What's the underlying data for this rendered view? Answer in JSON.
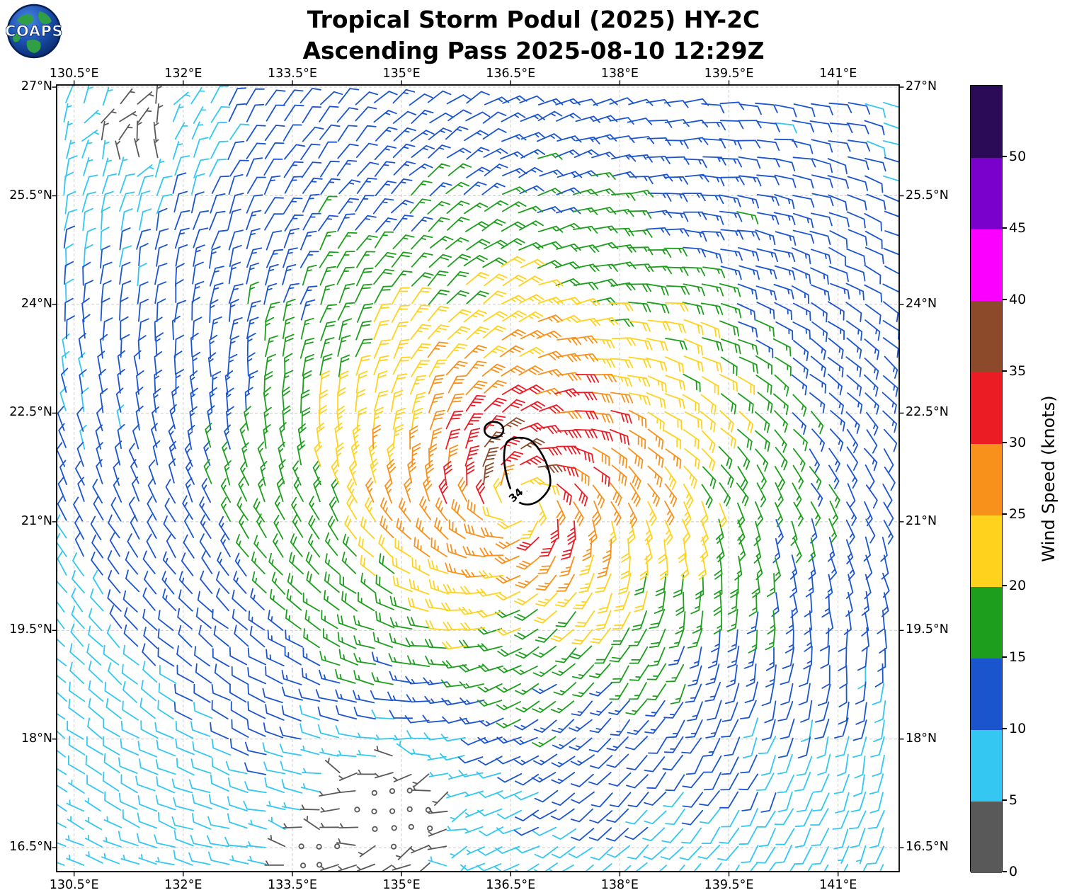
{
  "logo": {
    "text": "COAPS"
  },
  "header": {
    "title_line1": "Tropical Storm Podul (2025) HY-2C",
    "title_line2": "Ascending Pass 2025-08-10 12:29Z"
  },
  "chart_data": {
    "type": "wind_barb_map",
    "title": "Tropical Storm Podul (2025) HY-2C",
    "subtitle": "Ascending Pass 2025-08-10 12:29Z",
    "storm_name": "Tropical Storm Podul",
    "storm_year": "2025",
    "satellite": "HY-2C",
    "pass": "Ascending",
    "valid_time": "2025-08-10 12:29Z",
    "grid_on": true,
    "x_axis": {
      "range": [
        130.26,
        141.84
      ],
      "ticks": [
        130.5,
        132,
        133.5,
        135,
        136.5,
        138,
        139.5,
        141
      ],
      "tick_labels": [
        "130.5°E",
        "132°E",
        "133.5°E",
        "135°E",
        "136.5°E",
        "138°E",
        "139.5°E",
        "141°E"
      ]
    },
    "y_axis": {
      "range": [
        16.17,
        27.03
      ],
      "ticks": [
        27,
        25.5,
        24,
        22.5,
        21,
        19.5,
        18,
        16.5
      ],
      "tick_labels": [
        "27°N",
        "25.5°N",
        "24°N",
        "22.5°N",
        "21°N",
        "19.5°N",
        "18°N",
        "16.5°N"
      ]
    },
    "colorbar": {
      "label": "Wind Speed (knots)",
      "range": [
        0,
        55
      ],
      "ticks": [
        0,
        5,
        10,
        15,
        20,
        25,
        30,
        35,
        40,
        45,
        50
      ],
      "bins": [
        {
          "range": [
            0,
            5
          ],
          "color": "#595959"
        },
        {
          "range": [
            5,
            10
          ],
          "color": "#33C7F2"
        },
        {
          "range": [
            10,
            15
          ],
          "color": "#1B55CE"
        },
        {
          "range": [
            15,
            20
          ],
          "color": "#1D9E1D"
        },
        {
          "range": [
            20,
            25
          ],
          "color": "#FFD21E"
        },
        {
          "range": [
            25,
            30
          ],
          "color": "#F8911C"
        },
        {
          "range": [
            30,
            35
          ],
          "color": "#EC1C24"
        },
        {
          "range": [
            35,
            40
          ],
          "color": "#8C4A2B"
        },
        {
          "range": [
            40,
            45
          ],
          "color": "#FB00FF"
        },
        {
          "range": [
            45,
            50
          ],
          "color": "#7A00CC"
        },
        {
          "range": [
            50,
            55
          ],
          "color": "#2B0A57"
        }
      ]
    },
    "contour": {
      "value_knots": 34,
      "label": "34",
      "label_pos": {
        "lon": 136.57,
        "lat": 21.37,
        "rotation_deg": -42
      },
      "main_polygon": [
        [
          136.45,
          22.1
        ],
        [
          136.6,
          22.16
        ],
        [
          136.78,
          22.12
        ],
        [
          136.92,
          21.95
        ],
        [
          137.02,
          21.72
        ],
        [
          137.04,
          21.5
        ],
        [
          136.92,
          21.32
        ],
        [
          136.76,
          21.24
        ],
        [
          136.6,
          21.28
        ],
        [
          136.5,
          21.45
        ],
        [
          136.43,
          21.7
        ],
        [
          136.41,
          21.92
        ]
      ],
      "secondary_ellipse": {
        "lon": 136.27,
        "lat": 22.27,
        "rx_deg": 0.13,
        "ry_deg": 0.11
      }
    },
    "wind_field": {
      "units": "knots",
      "barb_convention": "half barb = 5 kt, full barb = 10 kt, circle = calm",
      "grid_step_deg": 0.25,
      "circulation": "cyclonic (counterclockwise)",
      "storm_center": {
        "lon": 136.65,
        "lat": 21.25
      },
      "peak_wind_kt": 37,
      "radial_profile_kt": [
        [
          0,
          16
        ],
        [
          0.35,
          24
        ],
        [
          0.6,
          33
        ],
        [
          0.85,
          31
        ],
        [
          1.2,
          28
        ],
        [
          1.6,
          25
        ],
        [
          2.1,
          22
        ],
        [
          2.7,
          19
        ],
        [
          3.4,
          16
        ],
        [
          4.2,
          13
        ],
        [
          5.2,
          11
        ],
        [
          6.5,
          9
        ],
        [
          8.5,
          7
        ]
      ],
      "north_side_asymmetry": 0.18,
      "inflow_angle_deg": 25,
      "calm_regions": [
        {
          "lon": 131.3,
          "lat": 26.4,
          "radius_deg": 1.4,
          "min_kt": 3
        },
        {
          "lon": 134.9,
          "lat": 17.0,
          "radius_deg": 2.0,
          "min_kt": 1.2
        },
        {
          "lon": 133.8,
          "lat": 16.4,
          "radius_deg": 1.0,
          "min_kt": 2
        }
      ]
    }
  }
}
